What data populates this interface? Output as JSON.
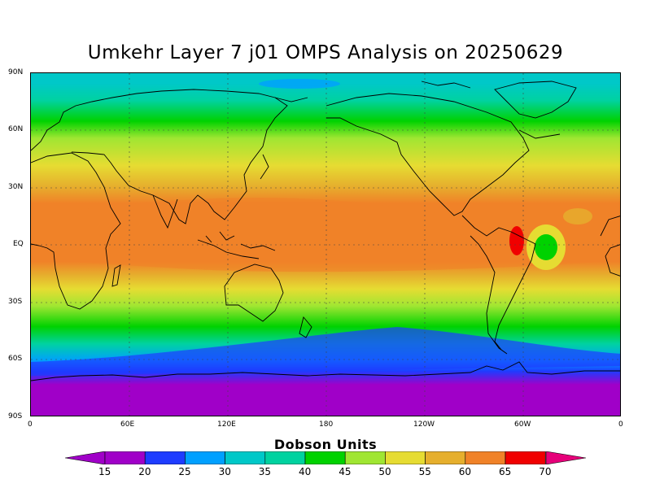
{
  "title": "Umkehr Layer 7 j01 OMPS Analysis on 20250629",
  "lat_labels": [
    "90N",
    "60N",
    "30N",
    "EQ",
    "30S",
    "60S",
    "90S"
  ],
  "lon_labels": [
    "0",
    "60E",
    "120E",
    "180",
    "120W",
    "60W",
    "0"
  ],
  "colorbar": {
    "title": "Dobson Units",
    "labels": [
      "15",
      "20",
      "25",
      "30",
      "35",
      "40",
      "45",
      "50",
      "55",
      "60",
      "65",
      "70"
    ],
    "colors": [
      "#a000c8",
      "#1e3cff",
      "#00a0ff",
      "#00c8c8",
      "#00d2a0",
      "#00d200",
      "#a0e632",
      "#e6dc32",
      "#e6af2d",
      "#f08228",
      "#f00000",
      "#e6007a"
    ],
    "lower_arrow_color": "#a000c8",
    "upper_arrow_color": "#e6007a"
  }
}
